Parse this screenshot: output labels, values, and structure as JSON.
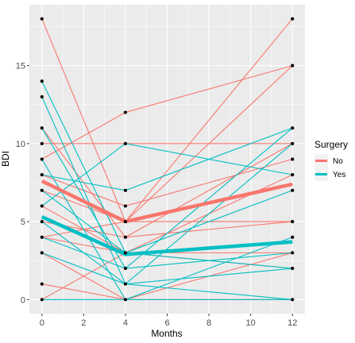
{
  "chart_data": {
    "type": "line",
    "xlabel": "Months",
    "ylabel": "BDI",
    "xlim": [
      -0.6,
      12.6
    ],
    "ylim": [
      -0.9,
      18.9
    ],
    "x_ticks": [
      0,
      2,
      4,
      6,
      8,
      10,
      12
    ],
    "y_ticks": [
      0,
      5,
      10,
      15
    ],
    "grid": true,
    "legend": {
      "title": "Surgery",
      "position": "right",
      "entries": [
        {
          "label": "No",
          "color": "#F8766D"
        },
        {
          "label": "Yes",
          "color": "#00BFC4"
        }
      ]
    },
    "colors": {
      "No": "#F8766D",
      "Yes": "#00BFC4",
      "panel": "#EBEBEB",
      "grid": "#ffffff",
      "point": "#000000"
    },
    "x": [
      0,
      4,
      12
    ],
    "individuals": [
      {
        "group": "No",
        "values": [
          18,
          5,
          15
        ]
      },
      {
        "group": "No",
        "values": [
          11,
          4,
          10
        ]
      },
      {
        "group": "No",
        "values": [
          10,
          10,
          10
        ]
      },
      {
        "group": "No",
        "values": [
          9,
          12,
          15
        ]
      },
      {
        "group": "No",
        "values": [
          8,
          6,
          9
        ]
      },
      {
        "group": "No",
        "values": [
          7,
          5,
          18
        ]
      },
      {
        "group": "No",
        "values": [
          6,
          3,
          3
        ]
      },
      {
        "group": "No",
        "values": [
          5,
          4,
          5
        ]
      },
      {
        "group": "No",
        "values": [
          4,
          3,
          2
        ]
      },
      {
        "group": "No",
        "values": [
          4,
          5,
          5
        ]
      },
      {
        "group": "No",
        "values": [
          3,
          0,
          3
        ]
      },
      {
        "group": "No",
        "values": [
          1,
          0,
          0
        ]
      },
      {
        "group": "No",
        "values": [
          0,
          3,
          8
        ]
      },
      {
        "group": "Yes",
        "values": [
          14,
          3,
          7
        ]
      },
      {
        "group": "Yes",
        "values": [
          13,
          1,
          2
        ]
      },
      {
        "group": "Yes",
        "values": [
          11,
          2,
          11
        ]
      },
      {
        "group": "Yes",
        "values": [
          9,
          0,
          4
        ]
      },
      {
        "group": "Yes",
        "values": [
          8,
          7,
          11
        ]
      },
      {
        "group": "Yes",
        "values": [
          7,
          3,
          2
        ]
      },
      {
        "group": "Yes",
        "values": [
          6,
          10,
          8
        ]
      },
      {
        "group": "Yes",
        "values": [
          5,
          1,
          10
        ]
      },
      {
        "group": "Yes",
        "values": [
          4,
          2,
          3
        ]
      },
      {
        "group": "Yes",
        "values": [
          3,
          1,
          0
        ]
      },
      {
        "group": "Yes",
        "values": [
          0,
          0,
          0
        ]
      }
    ],
    "series": [
      {
        "name": "No",
        "values": [
          7.6,
          5.0,
          7.4
        ]
      },
      {
        "name": "Yes",
        "values": [
          5.3,
          2.9,
          3.7
        ]
      }
    ]
  }
}
